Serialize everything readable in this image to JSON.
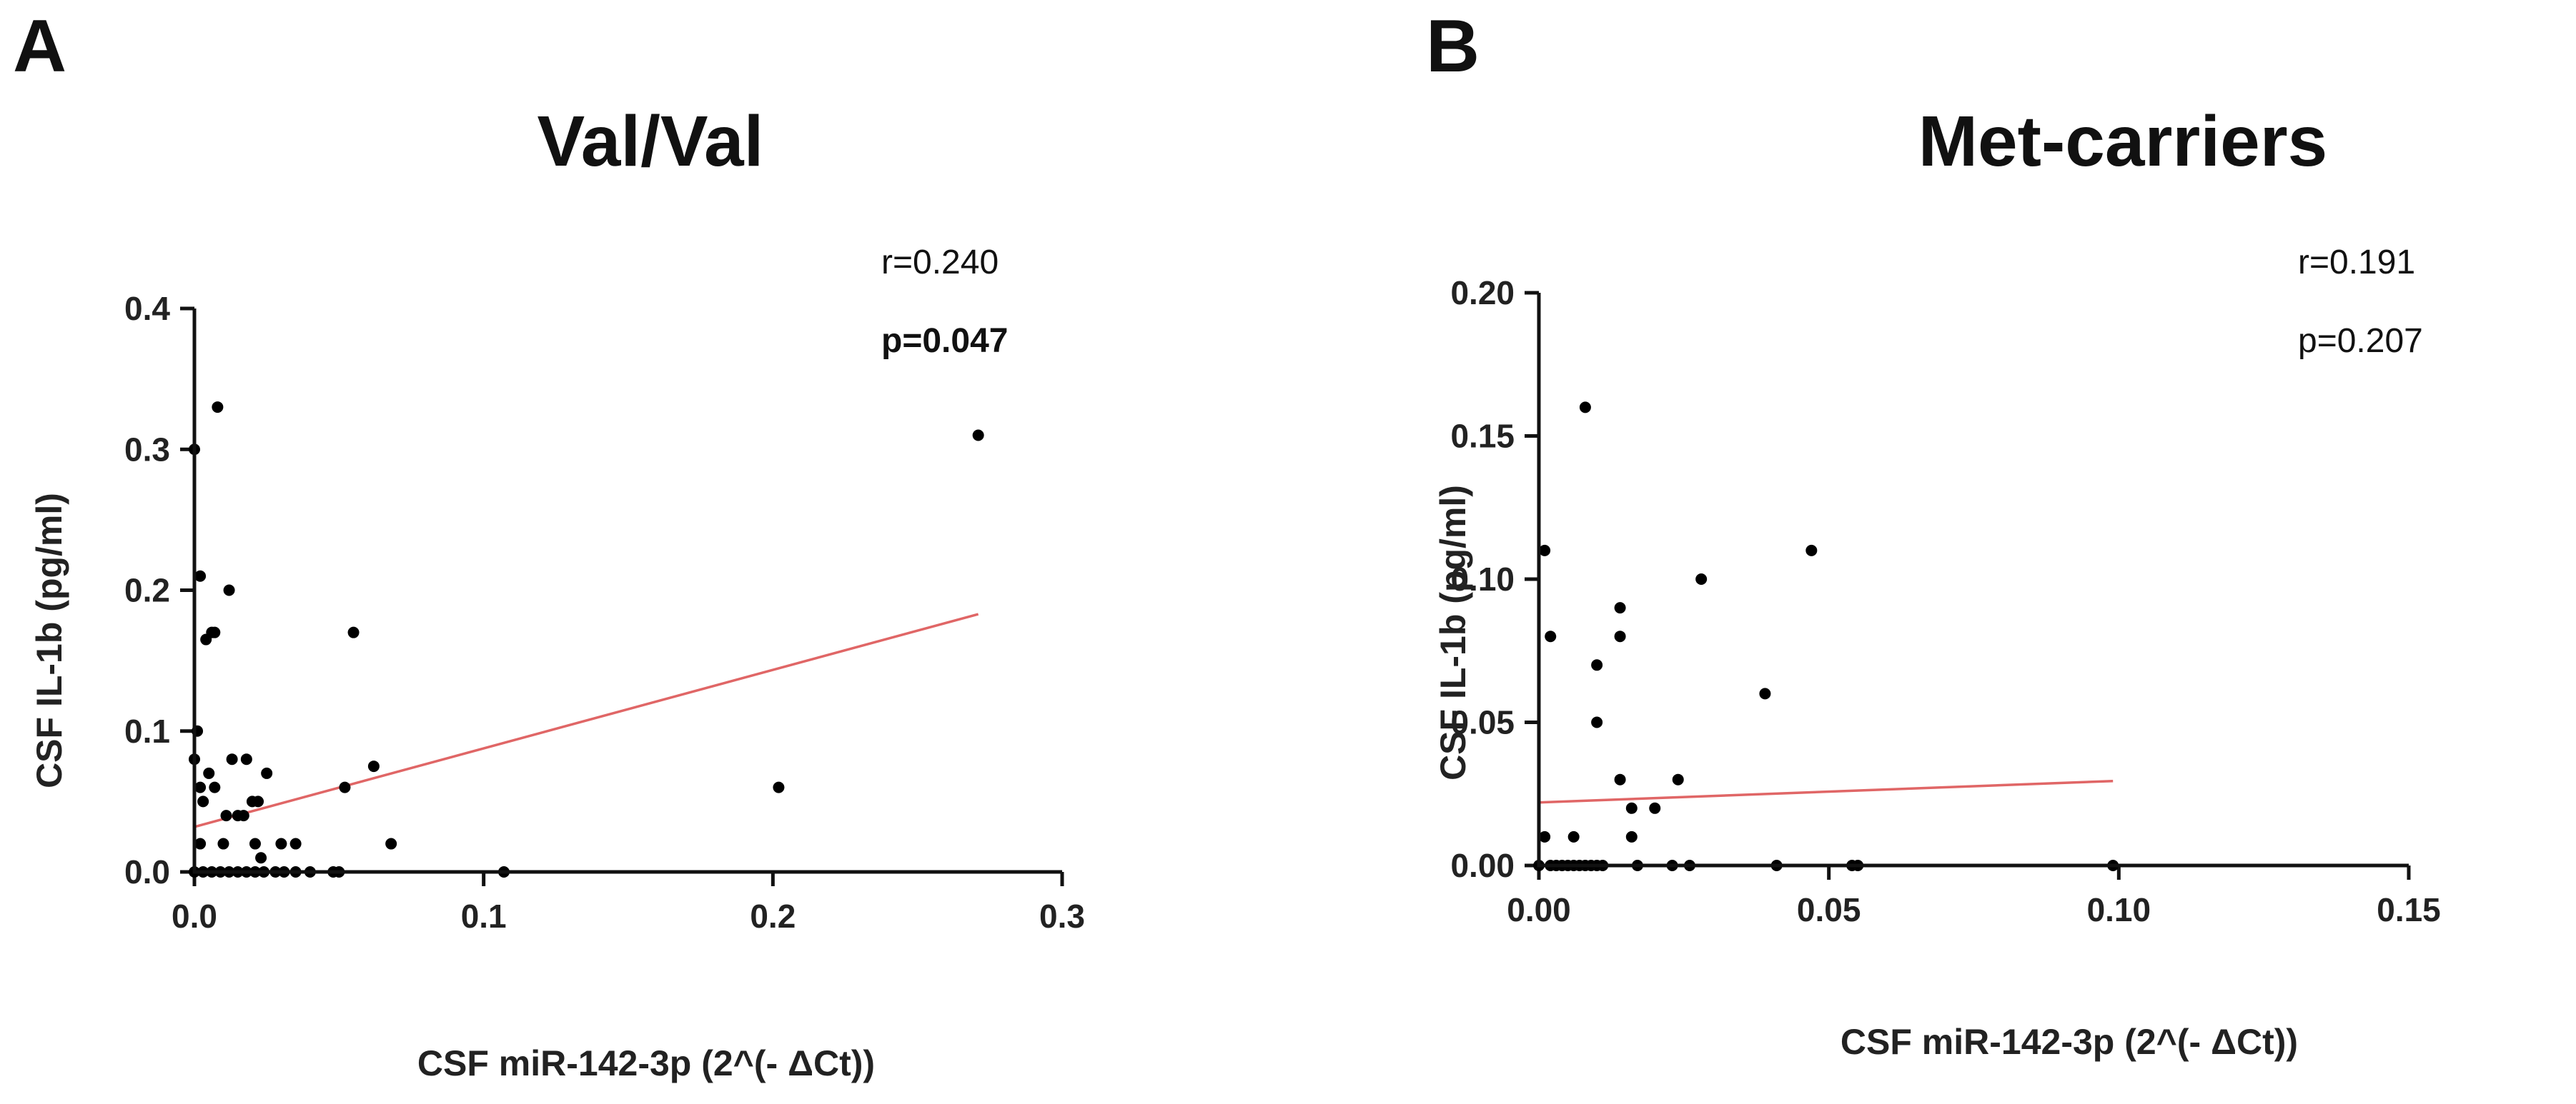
{
  "figure": {
    "panels": [
      {
        "letter": "A",
        "title": "Val/Val",
        "stat_r": "r=0.240",
        "stat_p": "p=0.047",
        "p_bold": true
      },
      {
        "letter": "B",
        "title": "Met-carriers",
        "stat_r": "r=0.191",
        "stat_p": "p=0.207",
        "p_bold": false
      }
    ]
  },
  "colors": {
    "points": "#000000",
    "fit_line": "#e06666",
    "axes": "#111111"
  },
  "chart_data": [
    {
      "type": "scatter",
      "panel": "A",
      "title": "Val/Val",
      "xlabel": "CSF miR-142-3p (2^(- ΔCt))",
      "ylabel": "CSF IL-1b (pg/ml)",
      "xlim": [
        0,
        0.3
      ],
      "ylim": [
        0,
        0.4
      ],
      "xticks": [
        0,
        0.1,
        0.2,
        0.3
      ],
      "xtick_labels": [
        "0.0",
        "0.1",
        "0.2",
        "0.3"
      ],
      "yticks": [
        0,
        0.1,
        0.2,
        0.3,
        0.4
      ],
      "ytick_labels": [
        "0.0",
        "0.1",
        "0.2",
        "0.3",
        "0.4"
      ],
      "points": [
        [
          0.0,
          0.3
        ],
        [
          0.002,
          0.21
        ],
        [
          0.008,
          0.33
        ],
        [
          0.012,
          0.2
        ],
        [
          0.004,
          0.165
        ],
        [
          0.006,
          0.17
        ],
        [
          0.007,
          0.17
        ],
        [
          0.055,
          0.17
        ],
        [
          0.271,
          0.31
        ],
        [
          0.202,
          0.06
        ],
        [
          0.0,
          0.08
        ],
        [
          0.001,
          0.1
        ],
        [
          0.002,
          0.06
        ],
        [
          0.003,
          0.05
        ],
        [
          0.005,
          0.07
        ],
        [
          0.007,
          0.06
        ],
        [
          0.013,
          0.08
        ],
        [
          0.018,
          0.08
        ],
        [
          0.011,
          0.04
        ],
        [
          0.015,
          0.04
        ],
        [
          0.017,
          0.04
        ],
        [
          0.02,
          0.05
        ],
        [
          0.022,
          0.05
        ],
        [
          0.025,
          0.07
        ],
        [
          0.052,
          0.06
        ],
        [
          0.062,
          0.075
        ],
        [
          0.002,
          0.02
        ],
        [
          0.01,
          0.02
        ],
        [
          0.021,
          0.02
        ],
        [
          0.023,
          0.01
        ],
        [
          0.03,
          0.02
        ],
        [
          0.035,
          0.02
        ],
        [
          0.068,
          0.02
        ],
        [
          0.0,
          0.0
        ],
        [
          0.003,
          0.0
        ],
        [
          0.006,
          0.0
        ],
        [
          0.009,
          0.0
        ],
        [
          0.012,
          0.0
        ],
        [
          0.015,
          0.0
        ],
        [
          0.018,
          0.0
        ],
        [
          0.021,
          0.0
        ],
        [
          0.024,
          0.0
        ],
        [
          0.028,
          0.0
        ],
        [
          0.031,
          0.0
        ],
        [
          0.035,
          0.0
        ],
        [
          0.04,
          0.0
        ],
        [
          0.048,
          0.0
        ],
        [
          0.05,
          0.0
        ],
        [
          0.107,
          0.0
        ]
      ],
      "fit_line": {
        "x": [
          0.0,
          0.271
        ],
        "y": [
          0.032,
          0.183
        ]
      }
    },
    {
      "type": "scatter",
      "panel": "B",
      "title": "Met-carriers",
      "xlabel": "CSF miR-142-3p (2^(- ΔCt))",
      "ylabel": "CSF IL-1b (pg/ml)",
      "xlim": [
        0,
        0.15
      ],
      "ylim": [
        0,
        0.2
      ],
      "xticks": [
        0,
        0.05,
        0.1,
        0.15
      ],
      "xtick_labels": [
        "0.00",
        "0.05",
        "0.10",
        "0.15"
      ],
      "yticks": [
        0,
        0.05,
        0.1,
        0.15,
        0.2
      ],
      "ytick_labels": [
        "0.00",
        "0.05",
        "0.10",
        "0.15",
        "0.20"
      ],
      "points": [
        [
          0.008,
          0.16
        ],
        [
          0.001,
          0.11
        ],
        [
          0.047,
          0.11
        ],
        [
          0.028,
          0.1
        ],
        [
          0.014,
          0.09
        ],
        [
          0.002,
          0.08
        ],
        [
          0.014,
          0.08
        ],
        [
          0.01,
          0.07
        ],
        [
          0.039,
          0.06
        ],
        [
          0.01,
          0.05
        ],
        [
          0.014,
          0.03
        ],
        [
          0.024,
          0.03
        ],
        [
          0.016,
          0.02
        ],
        [
          0.02,
          0.02
        ],
        [
          0.001,
          0.01
        ],
        [
          0.006,
          0.01
        ],
        [
          0.016,
          0.01
        ],
        [
          0.0,
          0.0
        ],
        [
          0.002,
          0.0
        ],
        [
          0.003,
          0.0
        ],
        [
          0.004,
          0.0
        ],
        [
          0.005,
          0.0
        ],
        [
          0.006,
          0.0
        ],
        [
          0.007,
          0.0
        ],
        [
          0.008,
          0.0
        ],
        [
          0.009,
          0.0
        ],
        [
          0.01,
          0.0
        ],
        [
          0.011,
          0.0
        ],
        [
          0.017,
          0.0
        ],
        [
          0.023,
          0.0
        ],
        [
          0.026,
          0.0
        ],
        [
          0.041,
          0.0
        ],
        [
          0.054,
          0.0
        ],
        [
          0.055,
          0.0
        ],
        [
          0.099,
          0.0
        ]
      ],
      "fit_line": {
        "x": [
          0.0,
          0.099
        ],
        "y": [
          0.022,
          0.0295
        ]
      }
    }
  ]
}
